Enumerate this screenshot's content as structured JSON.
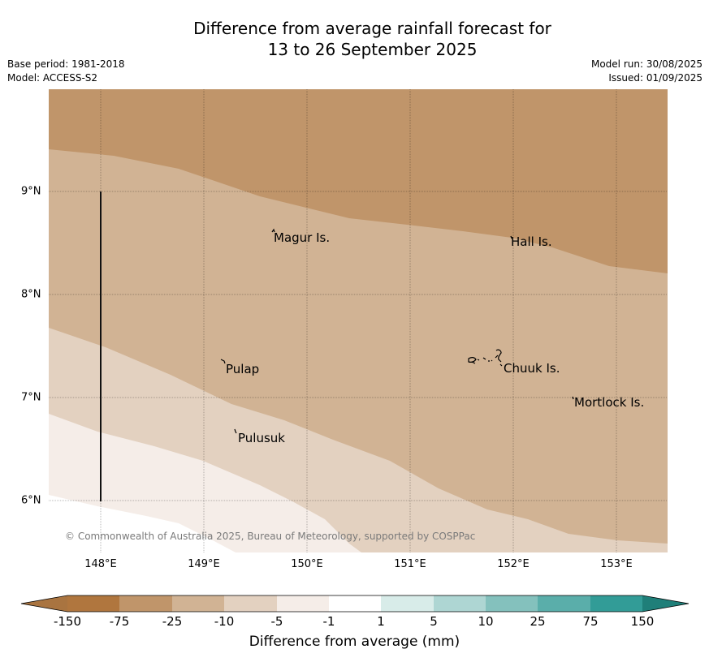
{
  "header": {
    "title_line1": "Difference from average rainfall forecast for",
    "title_line2": "13 to 26 September 2025",
    "base_period": "Base period: 1981-2018",
    "model": "Model: ACCESS-S2",
    "model_run": "Model run: 30/08/2025",
    "issued": "Issued: 01/09/2025"
  },
  "map": {
    "lat_ticks": [
      "9°N",
      "8°N",
      "7°N",
      "6°N"
    ],
    "lon_ticks": [
      "148°E",
      "149°E",
      "150°E",
      "151°E",
      "152°E",
      "153°E"
    ],
    "places": [
      {
        "name": "Magur Is.",
        "lon": 149.69,
        "lat": 8.55
      },
      {
        "name": "Hall Is.",
        "lon": 151.98,
        "lat": 8.52
      },
      {
        "name": "Pulap",
        "lon": 149.2,
        "lat": 7.3
      },
      {
        "name": "Chuuk Is.",
        "lon": 151.85,
        "lat": 7.3
      },
      {
        "name": "Mortlock Is.",
        "lon": 152.58,
        "lat": 6.97
      },
      {
        "name": "Pulusuk",
        "lon": 149.31,
        "lat": 6.63
      }
    ],
    "copyright": "© Commonwealth of Australia 2025, Bureau of Meteorology, supported by COSPPac",
    "zone_colors": [
      "#c0956a",
      "#d1b394",
      "#e3d1c0",
      "#f5ede8"
    ]
  },
  "colorbar": {
    "labels": [
      "-150",
      "-75",
      "-25",
      "-10",
      "-5",
      "-1",
      "1",
      "5",
      "10",
      "25",
      "75",
      "150"
    ],
    "colors": [
      "#a97440",
      "#b0763e",
      "#c0956a",
      "#d1b394",
      "#e3d1c0",
      "#f5ede8",
      "#ffffff",
      "#d8ece9",
      "#aed6d3",
      "#84c1bd",
      "#5aaeaa",
      "#329c97",
      "#1f7f79"
    ],
    "title": "Difference from average (mm)"
  }
}
